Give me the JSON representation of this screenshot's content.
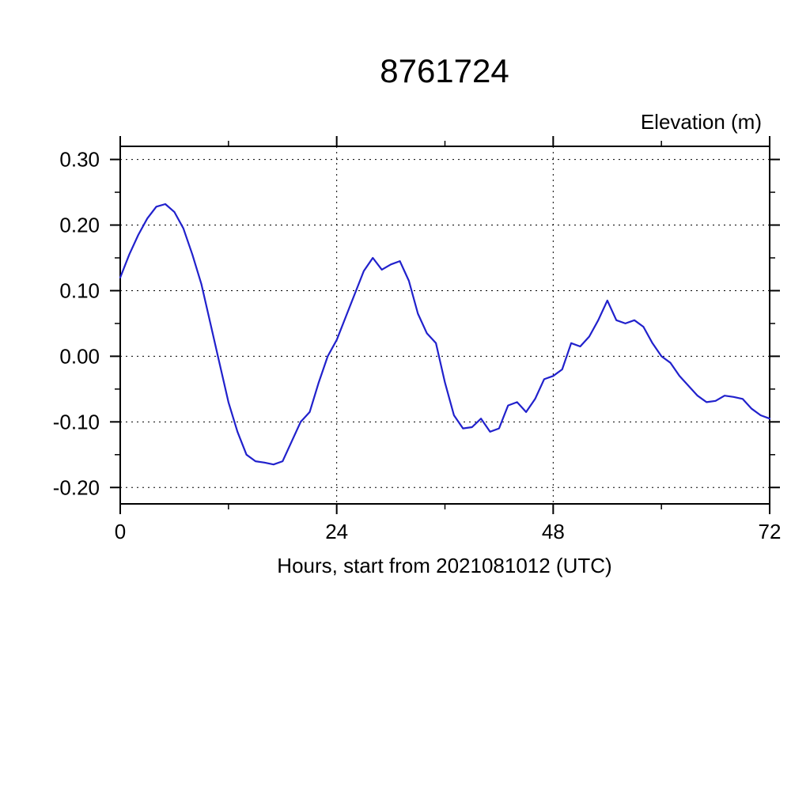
{
  "page": {
    "background": "#ffffff"
  },
  "chart_data": {
    "type": "line",
    "title": "8761724",
    "ylabel": "Elevation (m)",
    "xlabel": "Hours, start from 2021081012 (UTC)",
    "x_start": 0,
    "x_step": 1,
    "values": [
      0.12,
      0.155,
      0.185,
      0.21,
      0.228,
      0.232,
      0.22,
      0.195,
      0.155,
      0.11,
      0.05,
      -0.01,
      -0.07,
      -0.115,
      -0.15,
      -0.16,
      -0.162,
      -0.165,
      -0.16,
      -0.13,
      -0.1,
      -0.085,
      -0.04,
      0.0,
      0.025,
      0.06,
      0.095,
      0.13,
      0.15,
      0.132,
      0.14,
      0.145,
      0.115,
      0.065,
      0.035,
      0.02,
      -0.04,
      -0.09,
      -0.11,
      -0.108,
      -0.095,
      -0.115,
      -0.11,
      -0.075,
      -0.07,
      -0.085,
      -0.065,
      -0.035,
      -0.03,
      -0.02,
      0.02,
      0.015,
      0.03,
      0.055,
      0.085,
      0.055,
      0.05,
      0.055,
      0.045,
      0.02,
      0.0,
      -0.01,
      -0.03,
      -0.045,
      -0.06,
      -0.07,
      -0.068,
      -0.06,
      -0.062,
      -0.065,
      -0.08,
      -0.09,
      -0.095
    ],
    "xlim": [
      0,
      72
    ],
    "ylim": [
      -0.225,
      0.32
    ],
    "xticks": [
      0,
      24,
      48,
      72
    ],
    "yticks": [
      0.3,
      0.2,
      0.1,
      0.0,
      -0.1,
      -0.2
    ],
    "x_minor_step": 12,
    "y_minor_step": 0.05,
    "x_gridlines": [
      24,
      48
    ],
    "y_gridlines": [
      0.3,
      0.2,
      0.1,
      0.0,
      -0.1,
      -0.2
    ],
    "grid_style": "dashed",
    "legend_position": "none",
    "line_color": "#2121cc",
    "frame_color": "#000000",
    "grid_color": "#000000"
  }
}
